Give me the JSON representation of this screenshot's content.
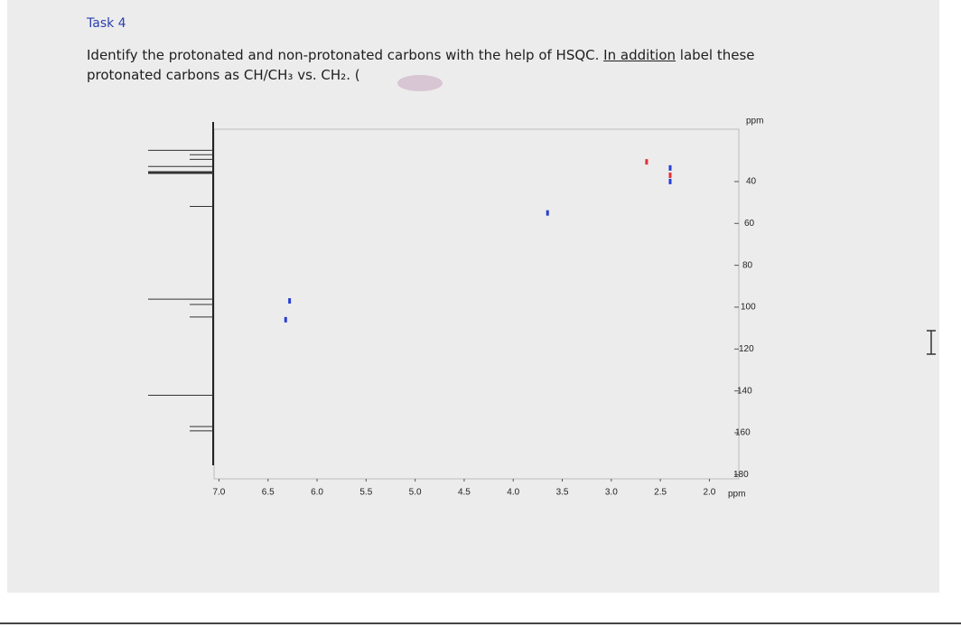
{
  "header": {
    "task": "Task 4",
    "line1_a": "Identify the protonated and non-protonated carbons with the help of HSQC. ",
    "line1_b": "In addition",
    "line1_c": " label these",
    "line2": "protonated carbons as CH/CH₃ vs. CH₂. ("
  },
  "chart_data": {
    "type": "scatter",
    "x_label": "ppm",
    "y_label": "ppm",
    "xlim": [
      7.05,
      1.7
    ],
    "ylim": [
      15,
      182
    ],
    "xticks": [
      {
        "value": 7,
        "label": "7.0"
      },
      6.5,
      {
        "value": 6,
        "label": "6.0"
      },
      5.5,
      {
        "value": 5,
        "label": "5.0"
      },
      4.5,
      {
        "value": 4,
        "label": "4.0"
      },
      3.5,
      {
        "value": 3,
        "label": "3.0"
      },
      2.5,
      {
        "value": 2,
        "label": "2.0"
      }
    ],
    "yticks": [
      40,
      60,
      80,
      100,
      120,
      140,
      160,
      180
    ],
    "series": [
      {
        "color": "#e0303a",
        "x": [
          2.64,
          2.4
        ],
        "values": [
          30.6,
          37
        ]
      },
      {
        "color": "#2a3fd0",
        "x": [
          2.4,
          2.4,
          3.65,
          6.28,
          6.32
        ],
        "values": [
          33.5,
          40,
          55,
          97,
          106
        ]
      }
    ],
    "projection": {
      "values": [
        25.1,
        27.2,
        29.4,
        32.8,
        35.7,
        51.9,
        96.2,
        98.7,
        104.7,
        142.1,
        157.0,
        159.1
      ]
    }
  }
}
